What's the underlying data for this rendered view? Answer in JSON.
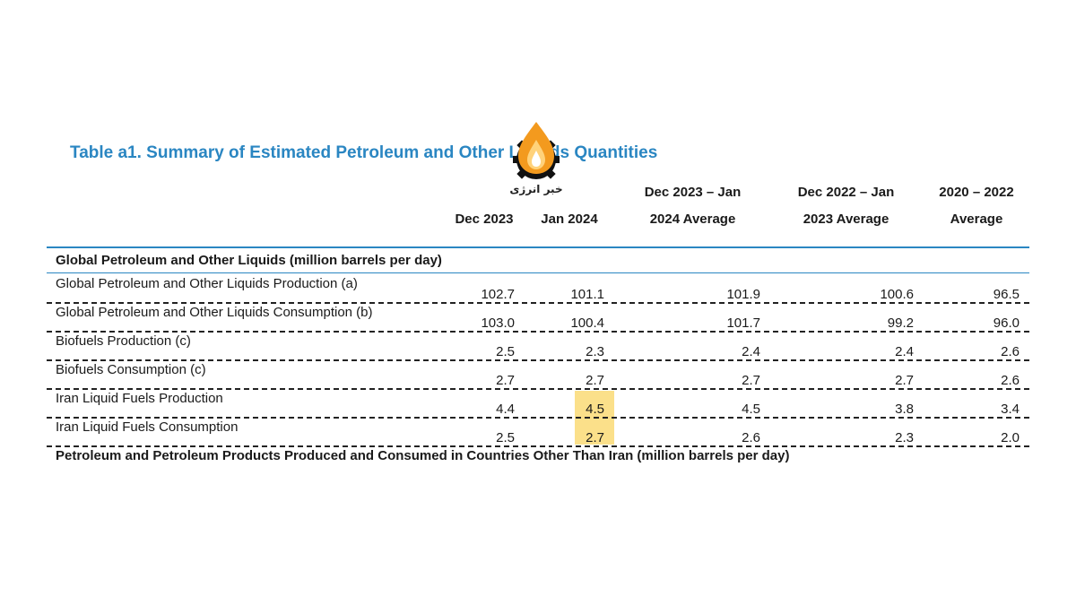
{
  "title": "Table a1. Summary of Estimated Petroleum and Other Liquids Quantities",
  "logo": {
    "text": "خبر انرژی",
    "colors": {
      "flame": "#f39a1e",
      "flame_inner": "#ffd27a",
      "gear": "#111111"
    }
  },
  "columns": [
    {
      "line1": "",
      "line2": "Dec 2023"
    },
    {
      "line1": "",
      "line2": "Jan 2024"
    },
    {
      "line1": "Dec 2023 – Jan",
      "line2": "2024 Average"
    },
    {
      "line1": "Dec 2022 – Jan",
      "line2": "2023 Average"
    },
    {
      "line1": "2020 – 2022",
      "line2": "Average"
    }
  ],
  "section_header": "Global Petroleum and Other Liquids (million barrels per day)",
  "rows": [
    {
      "label": "Global Petroleum and Other Liquids Production (a)",
      "values": [
        "102.7",
        "101.1",
        "101.9",
        "100.6",
        "96.5"
      ]
    },
    {
      "label": "Global Petroleum and Other Liquids Consumption (b)",
      "values": [
        "103.0",
        "100.4",
        "101.7",
        "99.2",
        "96.0"
      ]
    },
    {
      "label": "Biofuels Production (c)",
      "values": [
        "2.5",
        "2.3",
        "2.4",
        "2.4",
        "2.6"
      ]
    },
    {
      "label": "Biofuels Consumption (c)",
      "values": [
        "2.7",
        "2.7",
        "2.7",
        "2.7",
        "2.6"
      ]
    },
    {
      "label": "Iran Liquid Fuels Production",
      "values": [
        "4.4",
        "4.5",
        "4.5",
        "3.8",
        "3.4"
      ]
    },
    {
      "label": "Iran Liquid Fuels Consumption",
      "values": [
        "2.5",
        "2.7",
        "2.6",
        "2.3",
        "2.0"
      ]
    }
  ],
  "footer_section": "Petroleum and Petroleum Products Produced and Consumed in Countries Other Than Iran (million barrels per day)",
  "colors": {
    "title": "#2a86c2",
    "rule": "#2a86c2",
    "highlight": "#fbe08a"
  }
}
